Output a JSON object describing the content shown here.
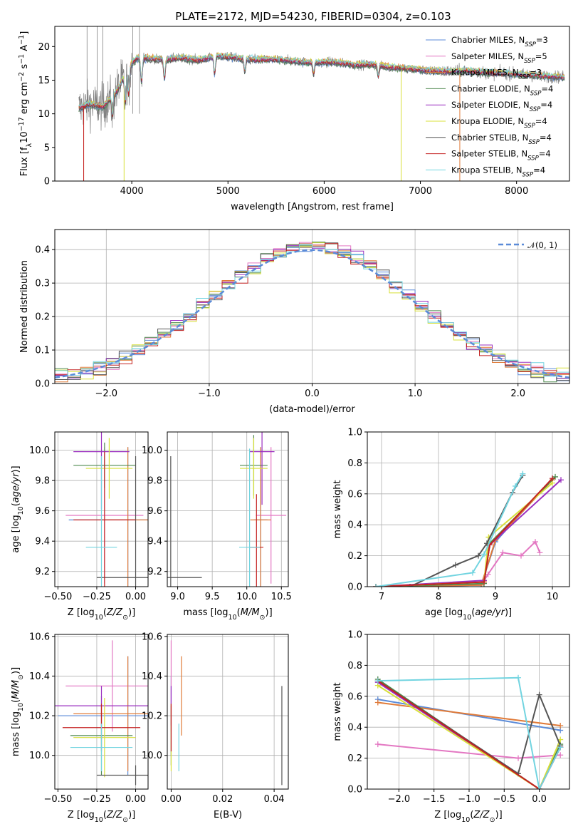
{
  "figure": {
    "title": "PLATE=2172, MJD=54230, FIBERID=0304, z=0.103"
  },
  "colors": {
    "Chabrier MILES": "#5b8bd8",
    "Salpeter MILES": "#e377c2",
    "Kroupa MILES": "#e07b39",
    "Chabrier ELODIE": "#4f8a4f",
    "Salpeter ELODIE": "#9b30c0",
    "Kroupa ELODIE": "#d8e03a",
    "Chabrier STELIB": "#555555",
    "Salpeter STELIB": "#c42222",
    "Kroupa STELIB": "#72d4e0",
    "observed": "#808080",
    "normal": "#5b8bd8"
  },
  "legend_spectrum": [
    {
      "name": "Chabrier MILES",
      "label": "Chabrier MILES, N",
      "sub": "SSP",
      "tail": "=3"
    },
    {
      "name": "Salpeter MILES",
      "label": "Salpeter MILES, N",
      "sub": "SSP",
      "tail": "=5"
    },
    {
      "name": "Kroupa MILES",
      "label": "Kroupa MILES, N",
      "sub": "SSP",
      "tail": "=3"
    },
    {
      "name": "Chabrier ELODIE",
      "label": "Chabrier ELODIE, N",
      "sub": "SSP",
      "tail": "=4"
    },
    {
      "name": "Salpeter ELODIE",
      "label": "Salpeter ELODIE, N",
      "sub": "SSP",
      "tail": "=4"
    },
    {
      "name": "Kroupa ELODIE",
      "label": "Kroupa ELODIE, N",
      "sub": "SSP",
      "tail": "=4"
    },
    {
      "name": "Chabrier STELIB",
      "label": "Chabrier STELIB, N",
      "sub": "SSP",
      "tail": "=4"
    },
    {
      "name": "Salpeter STELIB",
      "label": "Salpeter STELIB, N",
      "sub": "SSP",
      "tail": "=4"
    },
    {
      "name": "Kroupa STELIB",
      "label": "Kroupa STELIB, N",
      "sub": "SSP",
      "tail": "=4"
    }
  ],
  "chart_data": [
    {
      "id": "spectrum",
      "type": "line",
      "title": "PLATE=2172, MJD=54230, FIBERID=0304, z=0.103",
      "xlabel": "wavelength [Angstrom, rest frame]",
      "ylabel": "Flux [f_λ 10^-17 erg cm^-2 s^-1 A^-1]",
      "xlim": [
        3200,
        8550
      ],
      "ylim": [
        0,
        23
      ],
      "xticks": [
        4000,
        5000,
        6000,
        7000,
        8000
      ],
      "yticks": [
        0,
        5,
        10,
        15,
        20
      ],
      "grid": false,
      "legend": "top-right",
      "continuum": {
        "x": [
          3450,
          3550,
          3700,
          3850,
          3950,
          4050,
          4200,
          4350,
          4500,
          4700,
          4900,
          5100,
          5300,
          5500,
          5700,
          5900,
          6100,
          6300,
          6500,
          6700,
          6900,
          7100,
          7300,
          7500,
          7700,
          7900,
          8100,
          8300,
          8550
        ],
        "y": [
          10.8,
          11.5,
          11.0,
          13.5,
          16.5,
          18.3,
          18.2,
          18.1,
          18.3,
          18.0,
          18.6,
          18.3,
          18.0,
          18.1,
          17.8,
          17.6,
          17.7,
          17.3,
          17.3,
          16.9,
          16.7,
          16.4,
          16.3,
          16.4,
          16.1,
          16.0,
          15.8,
          15.6,
          15.4
        ]
      },
      "models_drop_to_zero": {
        "Kroupa MILES": [
          3500,
          7410
        ],
        "Kroupa ELODIE": [
          3920,
          6800
        ],
        "Salpeter STELIB": [
          3500
        ]
      }
    },
    {
      "id": "residual-histogram",
      "type": "line",
      "xlabel": "(data-model)/error",
      "ylabel": "Normed distribution",
      "xlim": [
        -2.5,
        2.5
      ],
      "ylim": [
        0,
        0.46
      ],
      "xticks": [
        -2,
        -1,
        0,
        1,
        2
      ],
      "yticks": [
        0.0,
        0.1,
        0.2,
        0.3,
        0.4
      ],
      "grid": true,
      "legend": "top-right",
      "legend_label": "𝒩(0, 1)",
      "reference_curve": {
        "name": "N(0,1)",
        "mean": 0,
        "sigma": 1
      }
    },
    {
      "id": "age-vs-Z",
      "type": "scatter",
      "xlabel": "Z [log10(Z/Z⊙)]",
      "ylabel": "age [log10(age/yr)]",
      "xlim": [
        -0.52,
        0.08
      ],
      "ylim": [
        9.1,
        10.12
      ],
      "xticks": [
        -0.5,
        -0.25,
        0.0
      ],
      "yticks": [
        9.2,
        9.4,
        9.6,
        9.8,
        10.0
      ],
      "grid": true,
      "points": [
        {
          "model": "Chabrier MILES",
          "x": -0.05,
          "xerr": 0.38,
          "y": 9.54,
          "yerr": 0.48
        },
        {
          "model": "Salpeter MILES",
          "x": -0.2,
          "xerr": 0.25,
          "y": 9.57,
          "yerr": 0.45
        },
        {
          "model": "Kroupa MILES",
          "x": -0.05,
          "xerr": 0.15,
          "y": 9.54,
          "yerr": 0.48
        },
        {
          "model": "Chabrier ELODIE",
          "x": -0.2,
          "xerr": 0.2,
          "y": 9.9,
          "yerr": 0.15
        },
        {
          "model": "Salpeter ELODIE",
          "x": -0.22,
          "xerr": 0.18,
          "y": 9.99,
          "yerr": 0.38
        },
        {
          "model": "Kroupa ELODIE",
          "x": -0.17,
          "xerr": 0.15,
          "y": 9.88,
          "yerr": 0.2
        },
        {
          "model": "Chabrier STELIB",
          "x": 0.0,
          "xerr": 0.25,
          "y": 9.16,
          "yerr": 0.8
        },
        {
          "model": "Salpeter STELIB",
          "x": -0.2,
          "xerr": 0.2,
          "y": 9.54,
          "yerr": 0.45
        },
        {
          "model": "Kroupa STELIB",
          "x": -0.22,
          "xerr": 0.1,
          "y": 9.36,
          "yerr": 0.6
        }
      ]
    },
    {
      "id": "age-vs-mass",
      "type": "scatter",
      "xlabel": "mass [log10(M/M⊙)]",
      "ylabel": "",
      "xlim": [
        8.85,
        10.6
      ],
      "ylim": [
        9.1,
        10.12
      ],
      "xticks": [
        9.0,
        9.5,
        10.0,
        10.5
      ],
      "yticks": [
        9.2,
        9.4,
        9.6,
        9.8,
        10.0
      ],
      "grid": true,
      "points": [
        {
          "model": "Chabrier MILES",
          "x": 10.2,
          "xerr": 0.1,
          "y": 9.54,
          "yerr": 0.48
        },
        {
          "model": "Salpeter MILES",
          "x": 10.35,
          "xerr": 0.22,
          "y": 9.57,
          "yerr": 0.45
        },
        {
          "model": "Kroupa MILES",
          "x": 10.2,
          "xerr": 0.15,
          "y": 9.54,
          "yerr": 0.48
        },
        {
          "model": "Chabrier ELODIE",
          "x": 10.1,
          "xerr": 0.2,
          "y": 9.9,
          "yerr": 0.2
        },
        {
          "model": "Salpeter ELODIE",
          "x": 10.22,
          "xerr": 0.18,
          "y": 9.99,
          "yerr": 0.35
        },
        {
          "model": "Kroupa ELODIE",
          "x": 10.1,
          "xerr": 0.2,
          "y": 9.88,
          "yerr": 0.2
        },
        {
          "model": "Chabrier STELIB",
          "x": 8.9,
          "xerr": 0.45,
          "y": 9.16,
          "yerr": 0.8
        },
        {
          "model": "Salpeter STELIB",
          "x": 10.14,
          "xerr": 0.1,
          "y": 9.36,
          "yerr": 0.35
        },
        {
          "model": "Kroupa STELIB",
          "x": 10.04,
          "xerr": 0.15,
          "y": 9.36,
          "yerr": 0.65
        }
      ]
    },
    {
      "id": "mass-weight-vs-age",
      "type": "line",
      "xlabel": "age [log10(age/yr)]",
      "ylabel": "mass weight",
      "xlim": [
        6.75,
        10.3
      ],
      "ylim": [
        0.0,
        1.0
      ],
      "xticks": [
        7,
        8,
        9,
        10
      ],
      "yticks": [
        0.0,
        0.2,
        0.4,
        0.6,
        0.8,
        1.0
      ],
      "grid": true,
      "series": [
        {
          "name": "Chabrier MILES",
          "x": [
            6.9,
            8.75,
            9.0,
            10.0
          ],
          "y": [
            0.0,
            0.01,
            0.29,
            0.7
          ]
        },
        {
          "name": "Salpeter MILES",
          "x": [
            6.9,
            8.75,
            8.87,
            9.13,
            9.45,
            9.7,
            9.78
          ],
          "y": [
            0.0,
            0.01,
            0.08,
            0.22,
            0.2,
            0.29,
            0.22
          ]
        },
        {
          "name": "Kroupa MILES",
          "x": [
            6.9,
            8.75,
            9.0,
            10.0
          ],
          "y": [
            0.0,
            0.01,
            0.3,
            0.69
          ]
        },
        {
          "name": "Chabrier ELODIE",
          "x": [
            6.9,
            8.8,
            8.9,
            10.05
          ],
          "y": [
            0.0,
            0.02,
            0.28,
            0.71
          ]
        },
        {
          "name": "Salpeter ELODIE",
          "x": [
            6.9,
            8.8,
            8.9,
            10.15
          ],
          "y": [
            0.0,
            0.04,
            0.27,
            0.69
          ]
        },
        {
          "name": "Kroupa ELODIE",
          "x": [
            6.9,
            8.8,
            8.88,
            10.0
          ],
          "y": [
            0.0,
            0.03,
            0.32,
            0.67
          ]
        },
        {
          "name": "Chabrier STELIB",
          "x": [
            7.5,
            8.3,
            8.7,
            8.85,
            9.3,
            9.48
          ],
          "y": [
            0.0,
            0.14,
            0.2,
            0.28,
            0.61,
            0.72
          ]
        },
        {
          "name": "Salpeter STELIB",
          "x": [
            6.9,
            8.8,
            8.9,
            10.0
          ],
          "y": [
            0.0,
            0.03,
            0.27,
            0.7
          ]
        },
        {
          "name": "Kroupa STELIB",
          "x": [
            6.9,
            8.6,
            8.8,
            9.35,
            9.48
          ],
          "y": [
            0.0,
            0.09,
            0.21,
            0.65,
            0.73
          ]
        }
      ]
    },
    {
      "id": "mass-vs-Z",
      "type": "scatter",
      "xlabel": "Z [log10(Z/Z⊙)]",
      "ylabel": "mass [log10(M/M⊙)]",
      "xlim": [
        -0.52,
        0.08
      ],
      "ylim": [
        9.83,
        10.61
      ],
      "xticks": [
        -0.5,
        -0.25,
        0.0
      ],
      "yticks": [
        10.0,
        10.2,
        10.4,
        10.6
      ],
      "grid": true,
      "points": [
        {
          "model": "Chabrier MILES",
          "x": -0.05,
          "xerr": 0.45,
          "y": 10.2,
          "yerr": 0.3
        },
        {
          "model": "Salpeter MILES",
          "x": -0.15,
          "xerr": 0.3,
          "y": 10.35,
          "yerr": 0.23
        },
        {
          "model": "Kroupa MILES",
          "x": -0.05,
          "xerr": 0.35,
          "y": 10.21,
          "yerr": 0.29
        },
        {
          "model": "Chabrier ELODIE",
          "x": -0.22,
          "xerr": 0.2,
          "y": 10.1,
          "yerr": 0.2
        },
        {
          "model": "Salpeter ELODIE",
          "x": -0.22,
          "xerr": 0.3,
          "y": 10.25,
          "yerr": 0.1
        },
        {
          "model": "Kroupa ELODIE",
          "x": -0.2,
          "xerr": 0.2,
          "y": 10.09,
          "yerr": 0.2
        },
        {
          "model": "Chabrier STELIB",
          "x": 0.0,
          "xerr": 0.25,
          "y": 9.9,
          "yerr": 0.05
        },
        {
          "model": "Salpeter STELIB",
          "x": -0.22,
          "xerr": 0.25,
          "y": 10.14,
          "yerr": 0.12
        },
        {
          "model": "Kroupa STELIB",
          "x": -0.22,
          "xerr": 0.2,
          "y": 10.04,
          "yerr": 0.12
        }
      ]
    },
    {
      "id": "mass-vs-EBV",
      "type": "scatter",
      "xlabel": "E(B-V)",
      "ylabel": "",
      "xlim": [
        -0.0015,
        0.0455
      ],
      "ylim": [
        9.83,
        10.61
      ],
      "xticks": [
        0.0,
        0.02,
        0.04
      ],
      "yticks": [
        10.0,
        10.2,
        10.4,
        10.6
      ],
      "grid": true,
      "points": [
        {
          "model": "Chabrier MILES",
          "x": 0.0,
          "xerr": 0.0,
          "y": 10.2,
          "yerr": 0.2
        },
        {
          "model": "Salpeter MILES",
          "x": 0.0,
          "xerr": 0.0,
          "y": 10.35,
          "yerr": 0.23
        },
        {
          "model": "Kroupa MILES",
          "x": 0.004,
          "xerr": 0.0,
          "y": 10.3,
          "yerr": 0.2
        },
        {
          "model": "Chabrier ELODIE",
          "x": 0.0,
          "xerr": 0.0,
          "y": 10.1,
          "yerr": 0.15
        },
        {
          "model": "Salpeter ELODIE",
          "x": 0.0,
          "xerr": 0.0,
          "y": 10.25,
          "yerr": 0.1
        },
        {
          "model": "Kroupa ELODIE",
          "x": 0.0,
          "xerr": 0.0,
          "y": 10.09,
          "yerr": 0.17
        },
        {
          "model": "Chabrier STELIB",
          "x": 0.043,
          "xerr": 0.0,
          "y": 10.1,
          "yerr": 0.25
        },
        {
          "model": "Salpeter STELIB",
          "x": 0.0,
          "xerr": 0.0,
          "y": 10.14,
          "yerr": 0.12
        },
        {
          "model": "Kroupa STELIB",
          "x": 0.003,
          "xerr": 0.0,
          "y": 10.04,
          "yerr": 0.12
        }
      ]
    },
    {
      "id": "mass-weight-vs-Z",
      "type": "line",
      "xlabel": "Z [log10(Z/Z⊙)]",
      "ylabel": "mass weight",
      "xlim": [
        -2.45,
        0.43
      ],
      "ylim": [
        0.0,
        1.0
      ],
      "xticks": [
        -2.0,
        -1.5,
        -1.0,
        -0.5,
        0.0
      ],
      "yticks": [
        0.0,
        0.2,
        0.4,
        0.6,
        0.8,
        1.0
      ],
      "grid": true,
      "series": [
        {
          "name": "Chabrier MILES",
          "x": [
            -2.3,
            0.3
          ],
          "y": [
            0.58,
            0.38
          ]
        },
        {
          "name": "Salpeter MILES",
          "x": [
            -2.3,
            -0.3,
            0.3
          ],
          "y": [
            0.29,
            0.2,
            0.22
          ]
        },
        {
          "name": "Kroupa MILES",
          "x": [
            -2.3,
            0.3
          ],
          "y": [
            0.56,
            0.41
          ]
        },
        {
          "name": "Chabrier ELODIE",
          "x": [
            -2.3,
            0.0,
            0.3
          ],
          "y": [
            0.71,
            0.0,
            0.29
          ]
        },
        {
          "name": "Salpeter ELODIE",
          "x": [
            -2.3,
            0.0,
            0.3
          ],
          "y": [
            0.69,
            0.0,
            0.27
          ]
        },
        {
          "name": "Kroupa ELODIE",
          "x": [
            -2.3,
            0.0,
            0.3
          ],
          "y": [
            0.67,
            0.0,
            0.32
          ]
        },
        {
          "name": "Chabrier STELIB",
          "x": [
            -2.3,
            -0.3,
            0.0,
            0.3
          ],
          "y": [
            0.7,
            0.1,
            0.61,
            0.28
          ]
        },
        {
          "name": "Salpeter STELIB",
          "x": [
            -2.3,
            0.0,
            0.3
          ],
          "y": [
            0.7,
            0.0,
            0.27
          ]
        },
        {
          "name": "Kroupa STELIB",
          "x": [
            -2.3,
            -0.3,
            0.0,
            0.3
          ],
          "y": [
            0.7,
            0.72,
            0.0,
            0.27
          ]
        }
      ]
    }
  ]
}
